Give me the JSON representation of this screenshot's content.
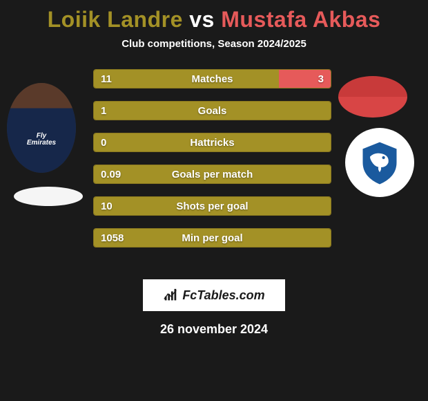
{
  "title": {
    "player1": "Loiik Landre",
    "vs": "vs",
    "player2": "Mustafa Akbas",
    "player1_color": "#a39126",
    "vs_color": "#ffffff",
    "player2_color": "#e65a5a"
  },
  "subtitle": "Club competitions, Season 2024/2025",
  "colors": {
    "background": "#1a1a1a",
    "bar_left": "#a39126",
    "bar_right": "#e65a5a",
    "bar_left_border": "#8a781f",
    "text": "#ffffff"
  },
  "bars": [
    {
      "label": "Matches",
      "left_val": "11",
      "right_val": "3",
      "left_pct": 78,
      "right_pct": 22
    },
    {
      "label": "Goals",
      "left_val": "1",
      "right_val": "",
      "left_pct": 100,
      "right_pct": 0
    },
    {
      "label": "Hattricks",
      "left_val": "0",
      "right_val": "",
      "left_pct": 100,
      "right_pct": 0
    },
    {
      "label": "Goals per match",
      "left_val": "0.09",
      "right_val": "",
      "left_pct": 100,
      "right_pct": 0
    },
    {
      "label": "Shots per goal",
      "left_val": "10",
      "right_val": "",
      "left_pct": 100,
      "right_pct": 0
    },
    {
      "label": "Min per goal",
      "left_val": "1058",
      "right_val": "",
      "left_pct": 100,
      "right_pct": 0
    }
  ],
  "brand": "FcTables.com",
  "date": "26 november 2024",
  "player1_jersey_text": "Fly\nEmirates",
  "badge_colors": {
    "shield_outer": "#1a5a9e",
    "shield_inner": "#ffffff"
  }
}
